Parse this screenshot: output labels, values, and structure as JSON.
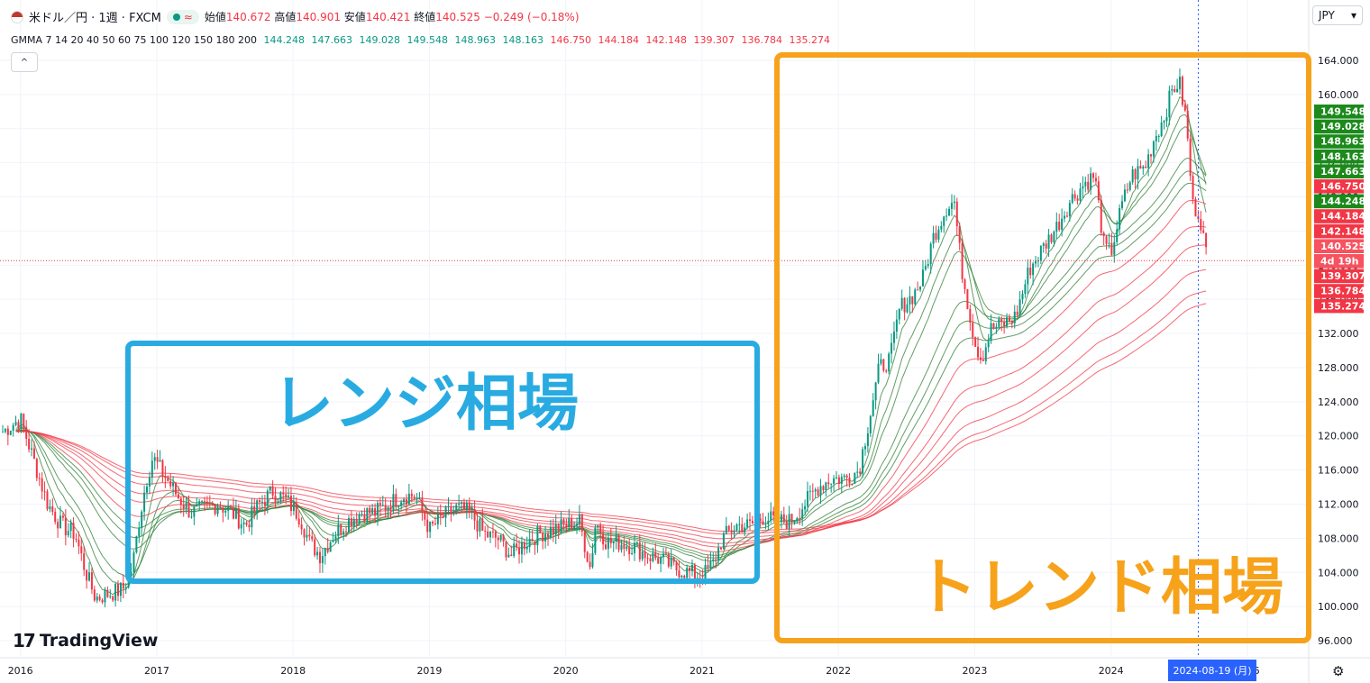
{
  "header": {
    "symbol": "米ドル／円 · 1週 · FXCM",
    "wave_icon": "≈",
    "open_label": "始値",
    "open_value": "140.672",
    "high_label": "高値",
    "high_value": "140.901",
    "low_label": "安値",
    "low_value": "140.421",
    "close_label": "終値",
    "close_value": "140.525",
    "change": "−0.249 (−0.18%)"
  },
  "indicator": {
    "label": "GMMA 7 14 20 40 50 60 75 100 120 150 180 200",
    "short_values": [
      "144.248",
      "147.663",
      "149.028",
      "149.548",
      "148.963",
      "148.163"
    ],
    "long_values": [
      "146.750",
      "144.184",
      "142.148",
      "139.307",
      "136.784",
      "135.274"
    ]
  },
  "controls": {
    "collapse_icon": "^",
    "currency": "JPY",
    "currency_caret": "▾",
    "settings_icon": "⚙"
  },
  "logo": {
    "mark": "17",
    "text": "TradingView"
  },
  "annotations": {
    "range_label": "レンジ相場",
    "trend_label": "トレンド相場",
    "range_color": "#29abe2",
    "trend_color": "#f7a21b"
  },
  "colors": {
    "up": "#089981",
    "down": "#f23645",
    "short_ma": "#2e7d32",
    "long_ma": "#f23645",
    "crosshair": "#2962ff"
  },
  "chart_data": {
    "type": "candlestick",
    "title": "米ドル／円 · 1週 · FXCM",
    "y_ticks": [
      96,
      100,
      104,
      108,
      112,
      116,
      120,
      124,
      128,
      132,
      136,
      140,
      144,
      148,
      152,
      156,
      160,
      164
    ],
    "y_tick_labels": [
      "96.000",
      "100.000",
      "104.000",
      "108.000",
      "112.000",
      "116.000",
      "120.000",
      "124.000",
      "128.000",
      "132.000",
      "136.000",
      "140.000",
      "144.000",
      "148.000",
      "152.000",
      "156.000",
      "160.000",
      "164.000"
    ],
    "ylim": [
      94,
      166
    ],
    "x_labels": [
      "2016",
      "2017",
      "2018",
      "2019",
      "2020",
      "2021",
      "2022",
      "2023",
      "2024",
      "2025"
    ],
    "x_years": [
      2016,
      2017,
      2018,
      2019,
      2020,
      2021,
      2022,
      2023,
      2024,
      2025
    ],
    "xlim": [
      2015.85,
      2025.45
    ],
    "crosshair_x": 2024.64,
    "crosshair_label": "2024-08-19 (月)",
    "crosshair_price": 140.525,
    "price_badges": [
      {
        "value": "149.548",
        "color": "#1b8a1b"
      },
      {
        "value": "149.028",
        "color": "#1b8a1b"
      },
      {
        "value": "148.963",
        "color": "#1b8a1b"
      },
      {
        "value": "148.163",
        "color": "#1b8a1b"
      },
      {
        "value": "147.663",
        "color": "#1b8a1b"
      },
      {
        "value": "146.750",
        "color": "#f23645"
      },
      {
        "value": "144.248",
        "color": "#1b8a1b"
      },
      {
        "value": "144.184",
        "color": "#f23645"
      },
      {
        "value": "142.148",
        "color": "#f23645"
      },
      {
        "value": "140.525",
        "color": "#f7525f"
      },
      {
        "value": "4d 19h",
        "color": "#f7525f"
      },
      {
        "value": "139.307",
        "color": "#f23645"
      },
      {
        "value": "136.784",
        "color": "#f23645"
      },
      {
        "value": "135.274",
        "color": "#f23645"
      }
    ],
    "price_path": [
      [
        2015.87,
        120.5
      ],
      [
        2016.0,
        122.0
      ],
      [
        2016.1,
        117.0
      ],
      [
        2016.2,
        112.0
      ],
      [
        2016.3,
        109.5
      ],
      [
        2016.4,
        108.5
      ],
      [
        2016.48,
        104.0
      ],
      [
        2016.55,
        101.0
      ],
      [
        2016.65,
        101.5
      ],
      [
        2016.75,
        102.0
      ],
      [
        2016.82,
        104.5
      ],
      [
        2016.87,
        110.0
      ],
      [
        2016.92,
        114.5
      ],
      [
        2016.97,
        117.5
      ],
      [
        2017.05,
        115.5
      ],
      [
        2017.15,
        113.0
      ],
      [
        2017.25,
        111.0
      ],
      [
        2017.35,
        111.5
      ],
      [
        2017.45,
        112.0
      ],
      [
        2017.55,
        111.0
      ],
      [
        2017.65,
        109.5
      ],
      [
        2017.75,
        112.0
      ],
      [
        2017.85,
        113.5
      ],
      [
        2017.95,
        112.5
      ],
      [
        2018.05,
        110.5
      ],
      [
        2018.12,
        107.5
      ],
      [
        2018.2,
        106.0
      ],
      [
        2018.3,
        108.5
      ],
      [
        2018.4,
        110.0
      ],
      [
        2018.5,
        111.0
      ],
      [
        2018.6,
        111.0
      ],
      [
        2018.7,
        112.0
      ],
      [
        2018.8,
        113.0
      ],
      [
        2018.9,
        113.0
      ],
      [
        2019.0,
        109.0
      ],
      [
        2019.1,
        110.5
      ],
      [
        2019.2,
        111.5
      ],
      [
        2019.3,
        111.0
      ],
      [
        2019.4,
        108.5
      ],
      [
        2019.5,
        108.0
      ],
      [
        2019.6,
        106.0
      ],
      [
        2019.7,
        107.5
      ],
      [
        2019.8,
        108.5
      ],
      [
        2019.9,
        109.0
      ],
      [
        2020.0,
        109.5
      ],
      [
        2020.1,
        110.0
      ],
      [
        2020.18,
        104.5
      ],
      [
        2020.22,
        110.0
      ],
      [
        2020.3,
        107.5
      ],
      [
        2020.4,
        107.5
      ],
      [
        2020.5,
        107.0
      ],
      [
        2020.6,
        106.0
      ],
      [
        2020.7,
        105.5
      ],
      [
        2020.8,
        104.5
      ],
      [
        2020.9,
        104.0
      ],
      [
        2021.0,
        103.5
      ],
      [
        2021.08,
        105.0
      ],
      [
        2021.15,
        108.0
      ],
      [
        2021.25,
        109.5
      ],
      [
        2021.35,
        109.5
      ],
      [
        2021.45,
        110.5
      ],
      [
        2021.55,
        110.0
      ],
      [
        2021.65,
        110.0
      ],
      [
        2021.75,
        112.0
      ],
      [
        2021.85,
        114.0
      ],
      [
        2021.95,
        115.0
      ],
      [
        2022.05,
        115.0
      ],
      [
        2022.15,
        116.0
      ],
      [
        2022.22,
        121.5
      ],
      [
        2022.3,
        128.0
      ],
      [
        2022.38,
        129.0
      ],
      [
        2022.45,
        135.0
      ],
      [
        2022.55,
        136.5
      ],
      [
        2022.62,
        138.5
      ],
      [
        2022.7,
        143.5
      ],
      [
        2022.8,
        147.0
      ],
      [
        2022.85,
        147.5
      ],
      [
        2022.9,
        140.0
      ],
      [
        2022.95,
        135.5
      ],
      [
        2023.0,
        131.0
      ],
      [
        2023.05,
        129.0
      ],
      [
        2023.12,
        132.5
      ],
      [
        2023.2,
        133.0
      ],
      [
        2023.3,
        134.0
      ],
      [
        2023.4,
        139.5
      ],
      [
        2023.5,
        142.0
      ],
      [
        2023.6,
        144.5
      ],
      [
        2023.7,
        147.5
      ],
      [
        2023.8,
        149.5
      ],
      [
        2023.88,
        150.5
      ],
      [
        2023.95,
        142.0
      ],
      [
        2024.0,
        141.5
      ],
      [
        2024.08,
        147.0
      ],
      [
        2024.15,
        150.5
      ],
      [
        2024.25,
        151.5
      ],
      [
        2024.32,
        155.0
      ],
      [
        2024.38,
        157.0
      ],
      [
        2024.45,
        160.5
      ],
      [
        2024.5,
        161.5
      ],
      [
        2024.55,
        157.0
      ],
      [
        2024.6,
        147.0
      ],
      [
        2024.65,
        146.0
      ],
      [
        2024.7,
        141.0
      ]
    ]
  }
}
